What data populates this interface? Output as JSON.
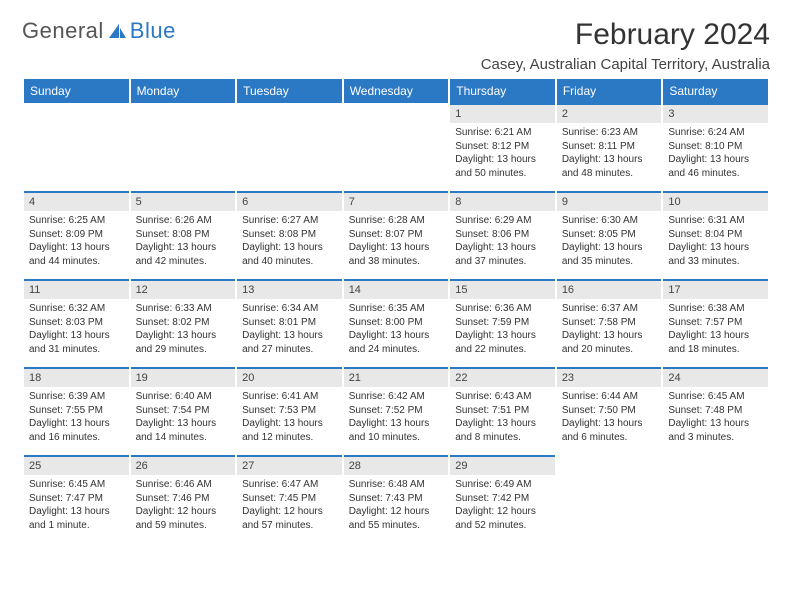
{
  "logo": {
    "part1": "General",
    "part2": "Blue"
  },
  "title": "February 2024",
  "location": "Casey, Australian Capital Territory, Australia",
  "colors": {
    "header_bg": "#2b78c5",
    "header_text": "#ffffff",
    "daynum_bg": "#e8e8e8",
    "daynum_border": "#2b78c5",
    "body_text": "#333333",
    "page_bg": "#ffffff"
  },
  "typography": {
    "title_fontsize": 30,
    "location_fontsize": 15,
    "header_fontsize": 12,
    "daynum_fontsize": 11,
    "cell_fontsize": 10
  },
  "day_headers": [
    "Sunday",
    "Monday",
    "Tuesday",
    "Wednesday",
    "Thursday",
    "Friday",
    "Saturday"
  ],
  "weeks": [
    [
      {
        "n": "",
        "sr": "",
        "ss": "",
        "dl": ""
      },
      {
        "n": "",
        "sr": "",
        "ss": "",
        "dl": ""
      },
      {
        "n": "",
        "sr": "",
        "ss": "",
        "dl": ""
      },
      {
        "n": "",
        "sr": "",
        "ss": "",
        "dl": ""
      },
      {
        "n": "1",
        "sr": "Sunrise: 6:21 AM",
        "ss": "Sunset: 8:12 PM",
        "dl": "Daylight: 13 hours and 50 minutes."
      },
      {
        "n": "2",
        "sr": "Sunrise: 6:23 AM",
        "ss": "Sunset: 8:11 PM",
        "dl": "Daylight: 13 hours and 48 minutes."
      },
      {
        "n": "3",
        "sr": "Sunrise: 6:24 AM",
        "ss": "Sunset: 8:10 PM",
        "dl": "Daylight: 13 hours and 46 minutes."
      }
    ],
    [
      {
        "n": "4",
        "sr": "Sunrise: 6:25 AM",
        "ss": "Sunset: 8:09 PM",
        "dl": "Daylight: 13 hours and 44 minutes."
      },
      {
        "n": "5",
        "sr": "Sunrise: 6:26 AM",
        "ss": "Sunset: 8:08 PM",
        "dl": "Daylight: 13 hours and 42 minutes."
      },
      {
        "n": "6",
        "sr": "Sunrise: 6:27 AM",
        "ss": "Sunset: 8:08 PM",
        "dl": "Daylight: 13 hours and 40 minutes."
      },
      {
        "n": "7",
        "sr": "Sunrise: 6:28 AM",
        "ss": "Sunset: 8:07 PM",
        "dl": "Daylight: 13 hours and 38 minutes."
      },
      {
        "n": "8",
        "sr": "Sunrise: 6:29 AM",
        "ss": "Sunset: 8:06 PM",
        "dl": "Daylight: 13 hours and 37 minutes."
      },
      {
        "n": "9",
        "sr": "Sunrise: 6:30 AM",
        "ss": "Sunset: 8:05 PM",
        "dl": "Daylight: 13 hours and 35 minutes."
      },
      {
        "n": "10",
        "sr": "Sunrise: 6:31 AM",
        "ss": "Sunset: 8:04 PM",
        "dl": "Daylight: 13 hours and 33 minutes."
      }
    ],
    [
      {
        "n": "11",
        "sr": "Sunrise: 6:32 AM",
        "ss": "Sunset: 8:03 PM",
        "dl": "Daylight: 13 hours and 31 minutes."
      },
      {
        "n": "12",
        "sr": "Sunrise: 6:33 AM",
        "ss": "Sunset: 8:02 PM",
        "dl": "Daylight: 13 hours and 29 minutes."
      },
      {
        "n": "13",
        "sr": "Sunrise: 6:34 AM",
        "ss": "Sunset: 8:01 PM",
        "dl": "Daylight: 13 hours and 27 minutes."
      },
      {
        "n": "14",
        "sr": "Sunrise: 6:35 AM",
        "ss": "Sunset: 8:00 PM",
        "dl": "Daylight: 13 hours and 24 minutes."
      },
      {
        "n": "15",
        "sr": "Sunrise: 6:36 AM",
        "ss": "Sunset: 7:59 PM",
        "dl": "Daylight: 13 hours and 22 minutes."
      },
      {
        "n": "16",
        "sr": "Sunrise: 6:37 AM",
        "ss": "Sunset: 7:58 PM",
        "dl": "Daylight: 13 hours and 20 minutes."
      },
      {
        "n": "17",
        "sr": "Sunrise: 6:38 AM",
        "ss": "Sunset: 7:57 PM",
        "dl": "Daylight: 13 hours and 18 minutes."
      }
    ],
    [
      {
        "n": "18",
        "sr": "Sunrise: 6:39 AM",
        "ss": "Sunset: 7:55 PM",
        "dl": "Daylight: 13 hours and 16 minutes."
      },
      {
        "n": "19",
        "sr": "Sunrise: 6:40 AM",
        "ss": "Sunset: 7:54 PM",
        "dl": "Daylight: 13 hours and 14 minutes."
      },
      {
        "n": "20",
        "sr": "Sunrise: 6:41 AM",
        "ss": "Sunset: 7:53 PM",
        "dl": "Daylight: 13 hours and 12 minutes."
      },
      {
        "n": "21",
        "sr": "Sunrise: 6:42 AM",
        "ss": "Sunset: 7:52 PM",
        "dl": "Daylight: 13 hours and 10 minutes."
      },
      {
        "n": "22",
        "sr": "Sunrise: 6:43 AM",
        "ss": "Sunset: 7:51 PM",
        "dl": "Daylight: 13 hours and 8 minutes."
      },
      {
        "n": "23",
        "sr": "Sunrise: 6:44 AM",
        "ss": "Sunset: 7:50 PM",
        "dl": "Daylight: 13 hours and 6 minutes."
      },
      {
        "n": "24",
        "sr": "Sunrise: 6:45 AM",
        "ss": "Sunset: 7:48 PM",
        "dl": "Daylight: 13 hours and 3 minutes."
      }
    ],
    [
      {
        "n": "25",
        "sr": "Sunrise: 6:45 AM",
        "ss": "Sunset: 7:47 PM",
        "dl": "Daylight: 13 hours and 1 minute."
      },
      {
        "n": "26",
        "sr": "Sunrise: 6:46 AM",
        "ss": "Sunset: 7:46 PM",
        "dl": "Daylight: 12 hours and 59 minutes."
      },
      {
        "n": "27",
        "sr": "Sunrise: 6:47 AM",
        "ss": "Sunset: 7:45 PM",
        "dl": "Daylight: 12 hours and 57 minutes."
      },
      {
        "n": "28",
        "sr": "Sunrise: 6:48 AM",
        "ss": "Sunset: 7:43 PM",
        "dl": "Daylight: 12 hours and 55 minutes."
      },
      {
        "n": "29",
        "sr": "Sunrise: 6:49 AM",
        "ss": "Sunset: 7:42 PM",
        "dl": "Daylight: 12 hours and 52 minutes."
      },
      {
        "n": "",
        "sr": "",
        "ss": "",
        "dl": ""
      },
      {
        "n": "",
        "sr": "",
        "ss": "",
        "dl": ""
      }
    ]
  ]
}
